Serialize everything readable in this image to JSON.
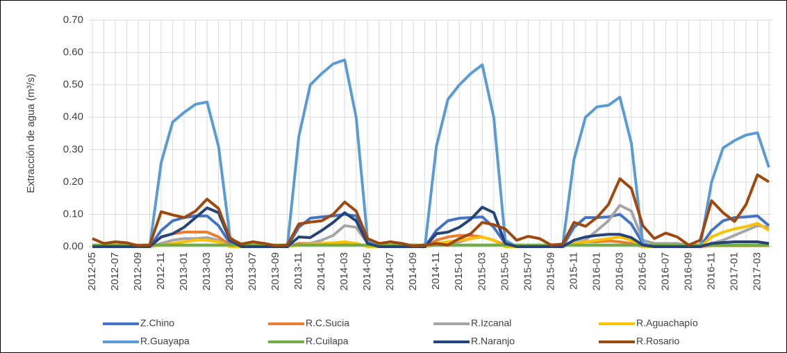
{
  "chart_data": {
    "type": "line",
    "ylabel": "Extracción de agua (m³/s)",
    "categories": [
      "2012-05",
      null,
      "2012-07",
      null,
      "2012-09",
      null,
      "2012-11",
      null,
      "2013-01",
      null,
      "2013-03",
      null,
      "2013-05",
      null,
      "2013-07",
      null,
      "2013-09",
      null,
      "2013-11",
      null,
      "2014-01",
      null,
      "2014-03",
      null,
      "2014-05",
      null,
      "2014-07",
      null,
      "2014-09",
      null,
      "2014-11",
      null,
      "2015-01",
      null,
      "2015-03",
      null,
      "2015-05",
      null,
      "2015-07",
      null,
      "2015-09",
      null,
      "2015-11",
      null,
      "2016-01",
      null,
      "2016-03",
      null,
      "2016-05",
      null,
      "2016-07",
      null,
      "2016-09",
      null,
      "2016-11",
      null,
      "2017-01",
      null,
      "2017-03",
      null
    ],
    "ylim": [
      0,
      0.7
    ],
    "yticks": [
      {
        "value": 0,
        "label": "0.00"
      },
      {
        "value": 0.1,
        "label": "0.10"
      },
      {
        "value": 0.2,
        "label": "0.20"
      },
      {
        "value": 0.3,
        "label": "0.30"
      },
      {
        "value": 0.4,
        "label": "0.40"
      },
      {
        "value": 0.5,
        "label": "0.50"
      },
      {
        "value": 0.6,
        "label": "0.60"
      },
      {
        "value": 0.7,
        "label": "0.70"
      }
    ],
    "grid": true,
    "legend": "bottom",
    "series": [
      {
        "name": "Z.Chino",
        "color": "#4472c4",
        "values": [
          0,
          0,
          0,
          0,
          0,
          0,
          0.05,
          0.08,
          0.09,
          0.095,
          0.095,
          0.065,
          0.01,
          0,
          0,
          0,
          0,
          0,
          0.06,
          0.088,
          0.092,
          0.095,
          0.1,
          0.095,
          0.01,
          0,
          0,
          0,
          0,
          0,
          0.05,
          0.08,
          0.088,
          0.09,
          0.092,
          0.06,
          0.01,
          0,
          0,
          0,
          0,
          0,
          0.06,
          0.09,
          0.09,
          0.092,
          0.1,
          0.07,
          0.01,
          0,
          0,
          0,
          0,
          0,
          0.05,
          0.08,
          0.09,
          0.092,
          0.095,
          0.065
        ]
      },
      {
        "name": "R.C.Sucia",
        "color": "#ed7d31",
        "values": [
          0,
          0,
          0,
          0,
          0,
          0,
          0.03,
          0.04,
          0.045,
          0.045,
          0.045,
          0.03,
          0.005,
          0,
          0,
          0,
          0,
          0,
          0.01,
          0.01,
          0.01,
          0.01,
          0.01,
          0.01,
          0,
          0,
          0,
          0,
          0,
          0,
          0.02,
          0.03,
          0.035,
          0.035,
          0.03,
          0.02,
          0.005,
          0,
          0,
          0,
          0,
          0,
          0.01,
          0.015,
          0.015,
          0.018,
          0.015,
          0.01,
          0,
          0,
          0,
          0,
          0,
          0,
          0.003,
          0.003,
          0.003,
          0.003,
          0.003,
          0.003
        ]
      },
      {
        "name": "R.Izcanal",
        "color": "#a5a5a5",
        "values": [
          0,
          0,
          0,
          0,
          0,
          0,
          0.01,
          0.02,
          0.025,
          0.025,
          0.028,
          0.02,
          0,
          0,
          0,
          0,
          0,
          0,
          0.005,
          0.01,
          0.02,
          0.035,
          0.065,
          0.06,
          0.01,
          0,
          0,
          0,
          0,
          0,
          0.005,
          0.01,
          0.015,
          0.025,
          0.03,
          0.02,
          0,
          0,
          0,
          0,
          0,
          0,
          0.01,
          0.02,
          0.05,
          0.08,
          0.128,
          0.11,
          0.02,
          0.01,
          0.01,
          0.01,
          0.005,
          0,
          0.01,
          0.02,
          0.035,
          0.05,
          0.065,
          0.06
        ]
      },
      {
        "name": "R.Aguachapío",
        "color": "#ffc000",
        "values": [
          0,
          0,
          0,
          0,
          0,
          0,
          0.005,
          0.01,
          0.015,
          0.02,
          0.02,
          0.015,
          0,
          0,
          0,
          0,
          0,
          0,
          0.005,
          0.008,
          0.01,
          0.012,
          0.015,
          0.01,
          0,
          0,
          0,
          0,
          0,
          0,
          0.01,
          0.015,
          0.02,
          0.025,
          0.03,
          0.02,
          0,
          0,
          0,
          0,
          0,
          0,
          0.01,
          0.015,
          0.02,
          0.025,
          0.03,
          0.02,
          0,
          0,
          0,
          0,
          0,
          0,
          0.03,
          0.045,
          0.055,
          0.062,
          0.072,
          0.05
        ]
      },
      {
        "name": "R.Guayapa",
        "color": "#5b9bd5",
        "values": [
          0,
          0,
          0,
          0,
          0,
          0,
          0.26,
          0.385,
          0.415,
          0.44,
          0.447,
          0.31,
          0.03,
          0,
          0,
          0,
          0,
          0,
          0.34,
          0.5,
          0.535,
          0.565,
          0.577,
          0.4,
          0.02,
          0,
          0,
          0,
          0,
          0,
          0.31,
          0.455,
          0.5,
          0.535,
          0.562,
          0.4,
          0.02,
          0,
          0,
          0,
          0,
          0,
          0.27,
          0.4,
          0.432,
          0.437,
          0.462,
          0.32,
          0.01,
          0,
          0,
          0,
          0,
          0,
          0.2,
          0.305,
          0.328,
          0.345,
          0.352,
          0.245
        ]
      },
      {
        "name": "R.Cuilapa",
        "color": "#70ad47",
        "values": [
          0.005,
          0.005,
          0.005,
          0.005,
          0.005,
          0.005,
          0.005,
          0.005,
          0.005,
          0.005,
          0.005,
          0.005,
          0.005,
          0.005,
          0.005,
          0.005,
          0.005,
          0.005,
          0.005,
          0.005,
          0.005,
          0.005,
          0.005,
          0.005,
          0.005,
          0.005,
          0.005,
          0.005,
          0.005,
          0.005,
          0.005,
          0.005,
          0.005,
          0.005,
          0.005,
          0.005,
          0.005,
          0.005,
          0.005,
          0.005,
          0.005,
          0.005,
          0.005,
          0.005,
          0.005,
          0.005,
          0.005,
          0.005,
          0.005,
          0.005,
          0.005,
          0.005,
          0.005,
          0.005,
          0.005,
          0.005,
          0.005,
          0.005,
          0.005,
          0.005
        ]
      },
      {
        "name": "R.Naranjo",
        "color": "#264478",
        "values": [
          0,
          0,
          0,
          0,
          0,
          0,
          0.03,
          0.04,
          0.06,
          0.09,
          0.12,
          0.105,
          0.02,
          0,
          0,
          0,
          0,
          0,
          0.03,
          0.028,
          0.05,
          0.075,
          0.105,
          0.08,
          0.01,
          0,
          0,
          0,
          0,
          0,
          0.04,
          0.045,
          0.06,
          0.085,
          0.122,
          0.105,
          0.01,
          0,
          0,
          0,
          0,
          0,
          0.02,
          0.03,
          0.035,
          0.038,
          0.038,
          0.028,
          0.005,
          0,
          0,
          0,
          0,
          0,
          0.01,
          0.013,
          0.015,
          0.015,
          0.015,
          0.01
        ]
      },
      {
        "name": "R.Rosario",
        "color": "#9e480e",
        "values": [
          0.025,
          0.01,
          0.015,
          0.012,
          0.003,
          0.005,
          0.108,
          0.098,
          0.09,
          0.11,
          0.147,
          0.118,
          0.025,
          0.008,
          0.015,
          0.01,
          0.003,
          0.005,
          0.07,
          0.076,
          0.08,
          0.1,
          0.138,
          0.11,
          0.025,
          0.01,
          0.015,
          0.01,
          0.002,
          0.005,
          0.01,
          0.005,
          0.025,
          0.04,
          0.075,
          0.068,
          0.055,
          0.02,
          0.032,
          0.025,
          0.005,
          0.008,
          0.075,
          0.063,
          0.09,
          0.13,
          0.21,
          0.18,
          0.065,
          0.025,
          0.042,
          0.03,
          0.005,
          0.02,
          0.142,
          0.105,
          0.078,
          0.13,
          0.222,
          0.2
        ]
      }
    ]
  }
}
